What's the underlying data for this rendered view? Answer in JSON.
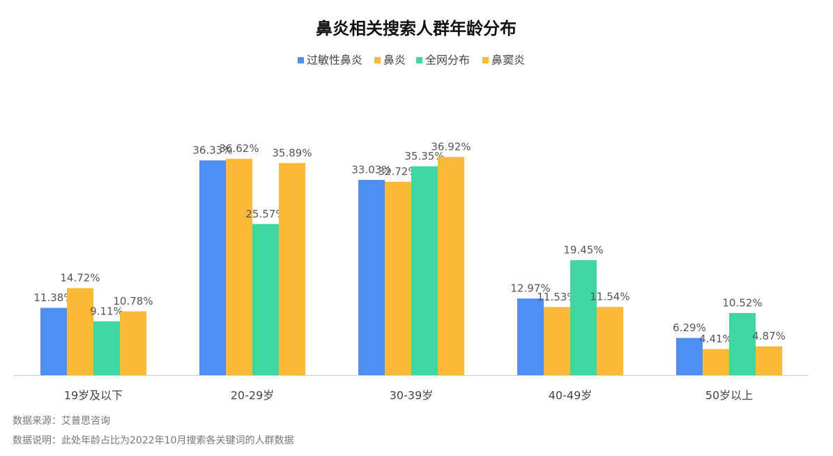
{
  "chart_data": {
    "type": "bar",
    "title": "鼻炎相关搜索人群年龄分布",
    "categories": [
      "19岁及以下",
      "20-29岁",
      "30-39岁",
      "40-49岁",
      "50岁以上"
    ],
    "series": [
      {
        "name": "过敏性鼻炎",
        "color": "#4e8ff5",
        "values": [
          11.38,
          36.33,
          33.03,
          12.97,
          6.29
        ],
        "value_labels": [
          "11.38%",
          "36.33%",
          "33.03%",
          "12.97%",
          "6.29%"
        ]
      },
      {
        "name": "鼻炎",
        "color": "#fbb93a",
        "values": [
          14.72,
          36.62,
          32.72,
          11.53,
          4.41
        ],
        "value_labels": [
          "14.72%",
          "36.62%",
          "32.72%",
          "11.53%",
          "4.41%"
        ]
      },
      {
        "name": "全网分布",
        "color": "#3fd6a4",
        "values": [
          9.11,
          25.57,
          35.35,
          19.45,
          10.52
        ],
        "value_labels": [
          "9.11%",
          "25.57%",
          "35.35%",
          "19.45%",
          "10.52%"
        ]
      },
      {
        "name": "鼻窦炎",
        "color": "#fbb93a",
        "values": [
          10.78,
          35.89,
          36.92,
          11.54,
          4.87
        ],
        "value_labels": [
          "10.78%",
          "35.89%",
          "36.92%",
          "11.54%",
          "4.87%"
        ]
      }
    ],
    "ylim": [
      0,
      40
    ],
    "source": "数据来源：艾普思咨询",
    "note": "数据说明：此处年龄占比为2022年10月搜索各关键词的人群数据"
  }
}
